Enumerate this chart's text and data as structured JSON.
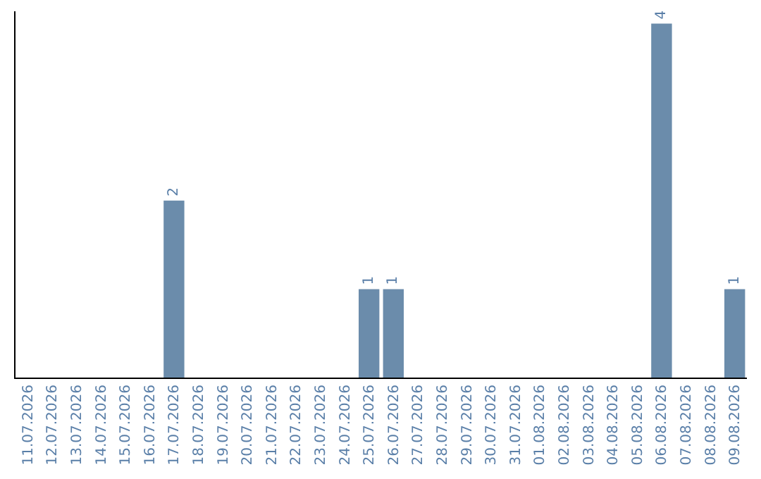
{
  "chart_data": {
    "type": "bar",
    "categories": [
      "11.07.2026",
      "12.07.2026",
      "13.07.2026",
      "14.07.2026",
      "15.07.2026",
      "16.07.2026",
      "17.07.2026",
      "18.07.2026",
      "19.07.2026",
      "20.07.2026",
      "21.07.2026",
      "22.07.2026",
      "23.07.2026",
      "24.07.2026",
      "25.07.2026",
      "26.07.2026",
      "27.07.2026",
      "28.07.2026",
      "29.07.2026",
      "30.07.2026",
      "31.07.2026",
      "01.08.2026",
      "02.08.2026",
      "03.08.2026",
      "04.08.2026",
      "05.08.2026",
      "06.08.2026",
      "07.08.2026",
      "08.08.2026",
      "09.08.2026"
    ],
    "values": [
      null,
      null,
      null,
      null,
      null,
      null,
      2,
      null,
      null,
      null,
      null,
      null,
      null,
      null,
      1,
      1,
      null,
      null,
      null,
      null,
      null,
      null,
      null,
      null,
      null,
      null,
      4,
      null,
      null,
      1
    ],
    "color": "#6b8cab",
    "data_labels": true,
    "tick_labels": "x"
  }
}
